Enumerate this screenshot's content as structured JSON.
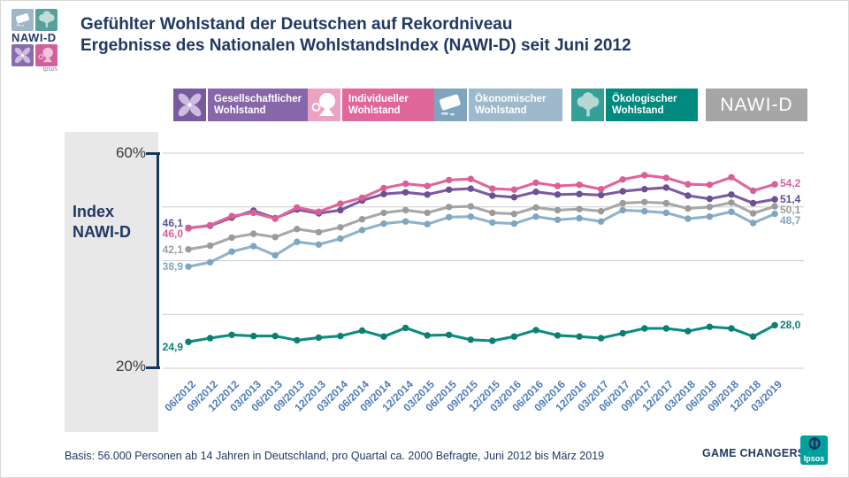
{
  "header": {
    "logo_text": "NAWI-D",
    "logo_ipsos": "Ipsos",
    "title_line1": "Gefühlter Wohlstand der Deutschen auf Rekordniveau",
    "title_line2": "Ergebnisse des Nationalen WohlstandsIndex (NAWI-D) seit Juni 2012"
  },
  "legend": {
    "items": [
      {
        "label_line1": "Gesellschaftlicher",
        "label_line2": "Wohlstand",
        "color": "#8767a9",
        "icon": "pinwheel-hands-icon"
      },
      {
        "label_line1": "Individueller",
        "label_line2": "Wohlstand",
        "color": "#e0679c",
        "icon": "person-profile-icon"
      },
      {
        "label_line1": "Ökonomischer",
        "label_line2": "Wohlstand",
        "color": "#9db9cb",
        "icon": "money-ledger-icon"
      },
      {
        "label_line1": "Ökologischer",
        "label_line2": "Wohlstand",
        "color": "#00897e",
        "icon": "tree-icon"
      }
    ],
    "nawid_label": "NAWI-D",
    "nawid_color": "#a6a6a6"
  },
  "axis": {
    "top_label": "60%",
    "bottom_label": "20%",
    "index_label_line1": "Index",
    "index_label_line2": "NAWI-D"
  },
  "chart_data": {
    "type": "line",
    "title": "Gefühlter Wohlstand der Deutschen auf Rekordniveau",
    "subtitle": "Ergebnisse des Nationalen WohlstandsIndex (NAWI-D) seit Juni 2012",
    "ylabel": "Index NAWI-D",
    "ylim": [
      20,
      60
    ],
    "yticks": [
      60,
      50,
      40,
      30,
      20
    ],
    "grid": true,
    "legend_position": "top",
    "x": [
      "06/2012",
      "09/2012",
      "12/2012",
      "03/2013",
      "06/2013",
      "09/2013",
      "12/2013",
      "03/2014",
      "06/2014",
      "09/2014",
      "12/2014",
      "03/2015",
      "06/2015",
      "09/2015",
      "12/2015",
      "03/2016",
      "06/2016",
      "09/2016",
      "12/2016",
      "03/2017",
      "06/2017",
      "09/2017",
      "12/2017",
      "03/2018",
      "06/2018",
      "09/2018",
      "12/2018",
      "03/2019"
    ],
    "series": [
      {
        "name": "Ökonomischer Wohlstand",
        "color": "#8fb3ca",
        "dot_color": "#7fa6c0",
        "label_color": "#7fa6c0",
        "start_label": "38,9",
        "end_label": "48,7",
        "values": [
          38.9,
          39.7,
          41.7,
          42.7,
          41.0,
          43.5,
          43.0,
          44.1,
          45.7,
          46.9,
          47.3,
          46.8,
          48.1,
          48.2,
          47.1,
          46.9,
          48.2,
          47.6,
          47.9,
          47.3,
          49.4,
          49.2,
          48.9,
          47.8,
          48.2,
          49.1,
          47.0,
          48.7
        ]
      },
      {
        "name": "NAWI-D",
        "color": "#a8a8a8",
        "dot_color": "#9b9b9b",
        "label_color": "#9e9e9e",
        "start_label": "42,1",
        "end_label": "50,1",
        "values": [
          42.1,
          42.8,
          44.3,
          45.0,
          44.4,
          45.9,
          45.3,
          46.2,
          47.7,
          48.9,
          49.4,
          48.9,
          50.0,
          50.1,
          48.9,
          48.7,
          49.9,
          49.4,
          49.6,
          49.2,
          50.7,
          50.9,
          50.7,
          49.7,
          50.0,
          50.8,
          48.8,
          50.1
        ]
      },
      {
        "name": "Gesellschaftlicher Wohlstand",
        "color": "#7d5ba3",
        "dot_color": "#6d4f93",
        "label_color": "#5e4d91",
        "start_label": "46,1",
        "end_label": "51,4",
        "values": [
          46.1,
          46.5,
          48.0,
          49.3,
          47.9,
          49.5,
          48.8,
          49.4,
          51.2,
          52.4,
          52.7,
          52.3,
          53.2,
          53.4,
          52.1,
          51.8,
          52.8,
          52.3,
          52.4,
          52.2,
          52.9,
          53.3,
          53.6,
          52.1,
          51.5,
          52.3,
          50.7,
          51.4
        ]
      },
      {
        "name": "Individueller Wohlstand",
        "color": "#e0659b",
        "dot_color": "#d95f96",
        "label_color": "#d95f96",
        "start_label": "46,0",
        "end_label": "54,2",
        "values": [
          46.0,
          46.6,
          48.3,
          48.9,
          47.8,
          49.9,
          49.1,
          50.6,
          51.7,
          53.5,
          54.3,
          53.9,
          55.0,
          55.2,
          53.4,
          53.2,
          54.5,
          53.9,
          54.1,
          53.3,
          55.1,
          55.9,
          55.4,
          54.2,
          54.1,
          55.5,
          53.0,
          54.2
        ]
      },
      {
        "name": "Ökologischer Wohlstand",
        "color": "#0f8c7f",
        "dot_color": "#0a8072",
        "label_color": "#0b8175",
        "start_label": "24,9",
        "end_label": "28,0",
        "values": [
          24.9,
          25.6,
          26.2,
          26.0,
          26.0,
          25.2,
          25.7,
          26.0,
          27.0,
          25.9,
          27.5,
          26.1,
          26.2,
          25.3,
          25.1,
          25.9,
          27.1,
          26.1,
          25.9,
          25.6,
          26.5,
          27.4,
          27.4,
          26.9,
          27.7,
          27.4,
          25.9,
          28.0
        ]
      }
    ]
  },
  "footer": {
    "basis": "Basis:  56.000  Personen ab 14 Jahren in Deutschland, pro Quartal ca. 2000  Befragte, Juni 2012 bis März 2019",
    "game_changers": "GAME CHANGERS",
    "ipsos": "Ipsos"
  }
}
